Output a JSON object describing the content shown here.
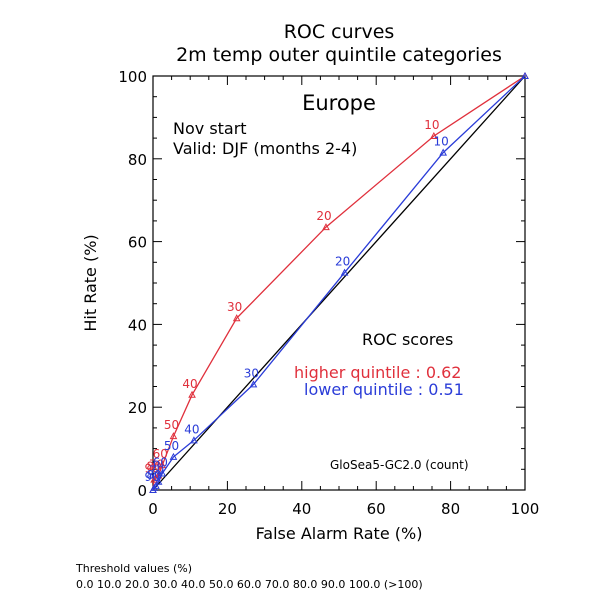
{
  "chart_data": {
    "type": "line",
    "title": "ROC curves",
    "subtitle": "2m temp outer quintile categories",
    "region": "Europe",
    "start_text": "Nov start",
    "valid_text": "Valid: DJF (months 2-4)",
    "xlabel": "False Alarm Rate (%)",
    "ylabel": "Hit Rate (%)",
    "xlim": [
      0,
      100
    ],
    "ylim": [
      0,
      100
    ],
    "xticks": [
      "0",
      "20",
      "40",
      "60",
      "80",
      "100"
    ],
    "yticks": [
      "0",
      "20",
      "40",
      "60",
      "80",
      "100"
    ],
    "diagonal": true,
    "scores_heading": "ROC scores",
    "model_text": "GloSea5-GC2.0 (count)",
    "threshold_title": "Threshold values (%)",
    "threshold_values": "0.0 10.0 20.0 30.0 40.0 50.0 60.0 70.0 80.0 90.0 100.0 (>100)",
    "series": [
      {
        "name": "higher quintile",
        "score_text": "higher quintile : 0.62",
        "color": "#e0303c",
        "x": [
          100,
          75.5,
          46.5,
          22.5,
          10.5,
          5.5,
          2.5,
          1.5,
          0.8,
          0.3,
          0
        ],
        "y": [
          100,
          85.5,
          63.5,
          41.5,
          23.0,
          13.0,
          6.0,
          3.5,
          3.0,
          2.5,
          0
        ],
        "labels": [
          "",
          "10",
          "20",
          "30",
          "40",
          "50",
          "60",
          "70",
          "80",
          "90",
          ""
        ]
      },
      {
        "name": "lower quintile",
        "score_text": "lower quintile : 0.51",
        "color": "#2a3cd8",
        "x": [
          100,
          78.0,
          51.5,
          27.0,
          11.0,
          5.5,
          2.5,
          1.5,
          0.8,
          0.3,
          0
        ],
        "y": [
          100,
          81.5,
          52.5,
          25.5,
          12.0,
          8.0,
          4.0,
          2.0,
          1.0,
          0.5,
          0
        ],
        "labels": [
          "",
          "10",
          "20",
          "30",
          "40",
          "50",
          "60",
          "70",
          "80",
          "90",
          ""
        ]
      }
    ]
  }
}
